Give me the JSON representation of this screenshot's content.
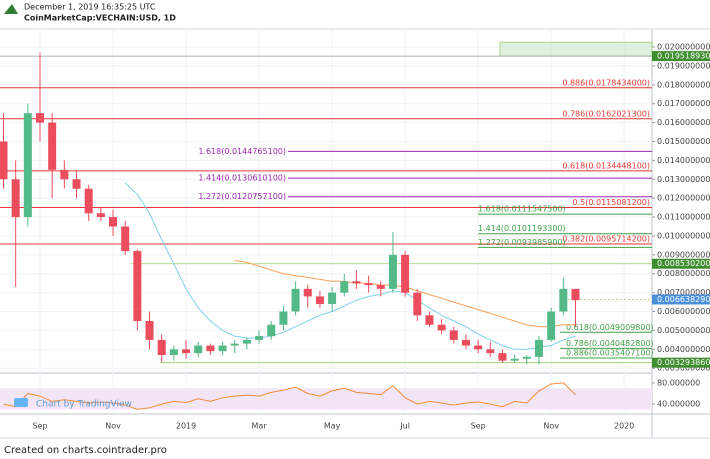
{
  "chart_data": {
    "type": "candlestick",
    "timestamp": "December 1, 2019 16:35:25 UTC",
    "title": "CoinMarketCap:VECHAIN:USD, 1D",
    "watermark": "Chart by TradingView",
    "footer": "Created on charts.cointrader.pro",
    "up_color": "#53b987",
    "down_color": "#eb4d5c",
    "grid": true,
    "categories": [
      null,
      null,
      null,
      "Sep",
      null,
      null,
      null,
      null,
      null,
      "Nov",
      null,
      null,
      null,
      null,
      null,
      "2019",
      null,
      null,
      null,
      null,
      null,
      "Mar",
      null,
      null,
      null,
      null,
      null,
      "May",
      null,
      null,
      null,
      null,
      null,
      "Jul",
      null,
      null,
      null,
      null,
      null,
      "Sep",
      null,
      null,
      null,
      null,
      null,
      "Nov",
      null,
      null,
      null,
      null,
      null,
      "2020"
    ],
    "open": [
      0.015,
      0.013,
      0.011,
      0.0165,
      0.016,
      0.0135,
      0.013,
      0.0125,
      0.0112,
      0.011,
      0.0105,
      0.0092,
      0.0055,
      0.0045,
      0.0037,
      0.004,
      0.0038,
      0.0042,
      0.0039,
      0.0042,
      0.0043,
      0.0045,
      0.0047,
      0.0053,
      0.006,
      0.0072,
      0.0068,
      0.0064,
      0.007,
      0.0076,
      0.0075,
      0.0074,
      0.0072,
      0.009,
      0.007,
      0.0058,
      0.0053,
      0.005,
      0.0045,
      0.0042,
      0.004,
      0.0038,
      0.0034,
      0.0035,
      0.0036,
      0.0045,
      0.006,
      0.0072,
      null,
      null,
      null,
      null
    ],
    "high": [
      0.0165,
      0.014,
      0.017,
      0.0197,
      0.0165,
      0.014,
      0.0135,
      0.0127,
      0.0115,
      0.0114,
      0.0108,
      0.0093,
      0.006,
      0.0048,
      0.0042,
      0.0045,
      0.0044,
      0.0043,
      0.0044,
      0.0045,
      0.0046,
      0.005,
      0.0055,
      0.0063,
      0.0076,
      0.0074,
      0.0071,
      0.0073,
      0.008,
      0.0082,
      0.0079,
      0.0076,
      0.0102,
      0.0092,
      0.0072,
      0.006,
      0.0056,
      0.0052,
      0.0048,
      0.0045,
      0.0044,
      0.004,
      0.0037,
      0.0037,
      0.0047,
      0.0062,
      0.0078,
      0.0072,
      null,
      null,
      null,
      null
    ],
    "low": [
      0.0125,
      0.0073,
      0.0105,
      0.015,
      0.012,
      0.0125,
      0.012,
      0.0108,
      0.0108,
      0.01,
      0.009,
      0.005,
      0.004,
      0.0033,
      0.0034,
      0.0035,
      0.0036,
      0.0037,
      0.0037,
      0.0038,
      0.004,
      0.0043,
      0.0045,
      0.005,
      0.0058,
      0.0062,
      0.0062,
      0.006,
      0.0068,
      0.0072,
      0.007,
      0.0068,
      0.007,
      0.0068,
      0.0055,
      0.0052,
      0.0048,
      0.0043,
      0.004,
      0.0038,
      0.0036,
      0.0033,
      0.0033,
      0.0032,
      0.0032,
      0.0044,
      0.0058,
      0.0052,
      null,
      null,
      null,
      null
    ],
    "close": [
      0.013,
      0.011,
      0.0165,
      0.016,
      0.0135,
      0.013,
      0.0125,
      0.0112,
      0.011,
      0.0105,
      0.0092,
      0.0055,
      0.0045,
      0.0037,
      0.004,
      0.0038,
      0.0042,
      0.0039,
      0.0042,
      0.0043,
      0.0045,
      0.0047,
      0.0053,
      0.006,
      0.0072,
      0.0068,
      0.0064,
      0.007,
      0.0076,
      0.0075,
      0.0074,
      0.0072,
      0.009,
      0.007,
      0.0058,
      0.0053,
      0.005,
      0.0045,
      0.0042,
      0.004,
      0.0038,
      0.0034,
      0.0035,
      0.0036,
      0.0045,
      0.006,
      0.0072,
      0.0066,
      null,
      null,
      null,
      null
    ],
    "moving_averages": [
      {
        "color": "#7fd3e6",
        "values": [
          null,
          null,
          null,
          null,
          null,
          null,
          null,
          null,
          null,
          null,
          0.0128,
          0.0122,
          0.0112,
          0.0098,
          0.0085,
          0.0072,
          0.0062,
          0.0055,
          0.005,
          0.0047,
          0.0046,
          0.0046,
          0.0047,
          0.0049,
          0.0052,
          0.0055,
          0.0058,
          0.006,
          0.0063,
          0.0066,
          0.0068,
          0.0069,
          0.0071,
          0.007,
          0.0066,
          0.0062,
          0.0058,
          0.0055,
          0.0052,
          0.0048,
          0.0045,
          0.0042,
          0.004,
          0.004,
          0.0041,
          0.0042,
          0.0045,
          0.0047,
          null,
          null,
          null,
          null
        ]
      },
      {
        "color": "#f5a05a",
        "values": [
          null,
          null,
          null,
          null,
          null,
          null,
          null,
          null,
          null,
          null,
          null,
          null,
          null,
          null,
          null,
          null,
          null,
          null,
          null,
          0.0087,
          0.0086,
          0.0084,
          0.0082,
          0.008,
          0.0079,
          0.0078,
          0.0077,
          0.0076,
          0.0076,
          0.0075,
          0.0075,
          0.0074,
          0.0074,
          0.0073,
          0.0071,
          0.0069,
          0.0067,
          0.0065,
          0.0063,
          0.0061,
          0.0059,
          0.0057,
          0.0055,
          0.0053,
          0.0052,
          0.0052,
          0.0053,
          0.0053,
          null,
          null,
          null,
          null
        ]
      }
    ],
    "ylim": [
      0.0028,
      0.0209
    ],
    "yticks": [
      {
        "value": 0.003,
        "label": "0.0030000000"
      },
      {
        "value": 0.004,
        "label": "0.0040000000"
      },
      {
        "value": 0.005,
        "label": "0.0050000000"
      },
      {
        "value": 0.006,
        "label": "0.0060000000"
      },
      {
        "value": 0.007,
        "label": "0.0070000000"
      },
      {
        "value": 0.008,
        "label": "0.0080000000"
      },
      {
        "value": 0.009,
        "label": "0.0090000000"
      },
      {
        "value": 0.01,
        "label": "0.0100000000"
      },
      {
        "value": 0.011,
        "label": "0.0110000000"
      },
      {
        "value": 0.012,
        "label": "0.0120000000"
      },
      {
        "value": 0.013,
        "label": "0.0130000000"
      },
      {
        "value": 0.014,
        "label": "0.0140000000"
      },
      {
        "value": 0.015,
        "label": "0.0150000000"
      },
      {
        "value": 0.016,
        "label": "0.0160000000"
      },
      {
        "value": 0.017,
        "label": "0.0170000000"
      },
      {
        "value": 0.018,
        "label": "0.0180000000"
      },
      {
        "value": 0.019,
        "label": "0.0190000000"
      },
      {
        "value": 0.02,
        "label": "0.0200000000"
      }
    ],
    "fib_sets": [
      {
        "color": "#e53935",
        "levels": [
          {
            "label": "0.886(0.0178434000)",
            "price": 0.0178434
          },
          {
            "label": "0.786(0.0162021300)",
            "price": 0.01620213
          },
          {
            "label": "0.618(0.0134448100)",
            "price": 0.01344481
          },
          {
            "label": "0.5(0.0115081200)",
            "price": 0.01150812
          },
          {
            "label": "0.382(0.0095714200)",
            "price": 0.00957142
          }
        ]
      },
      {
        "color": "#9c27b0",
        "levels": [
          {
            "label": "1.618(0.0144765100)",
            "price": 0.01447651
          },
          {
            "label": "1.414(0.0130610100)",
            "price": 0.01306101
          },
          {
            "label": "1.272(0.0120757100)",
            "price": 0.01207571
          }
        ]
      },
      {
        "color": "#43a047",
        "levels": [
          {
            "label": "1.618(0.0111547500)",
            "price": 0.01115475
          },
          {
            "label": "1.414(0.0101193300)",
            "price": 0.01011933
          },
          {
            "label": "1.272(0.0093985900)",
            "price": 0.00939859
          }
        ]
      },
      {
        "color": "#43a047",
        "levels": [
          {
            "label": "0.618(0.0049009800)",
            "price": 0.00490098
          },
          {
            "label": "0.786(0.0040482800)",
            "price": 0.00404828
          },
          {
            "label": "0.886(0.0035407100)",
            "price": 0.00354071
          }
        ]
      }
    ],
    "price_tags": [
      {
        "label": "0.0195189300",
        "value": 0.01951893,
        "color": "#3e8e2f"
      },
      {
        "label": "0.0085302000",
        "value": 0.0085302,
        "color": "#3e8e2f"
      },
      {
        "label": "0.0066382900",
        "value": 0.00663829,
        "color": "#4a90d9"
      },
      {
        "label": "0.0032938600",
        "value": 0.00329386,
        "color": "#3e8e2f"
      }
    ],
    "oscillator": {
      "color": "#f08c3a",
      "band": [
        30,
        70
      ],
      "ylim": [
        25,
        95
      ],
      "yticks": [
        {
          "value": 40,
          "label": "40.000000"
        },
        {
          "value": 80,
          "label": "80.000000"
        }
      ],
      "values": [
        40,
        35,
        60,
        55,
        45,
        48,
        45,
        42,
        44,
        42,
        38,
        30,
        33,
        40,
        45,
        43,
        50,
        45,
        52,
        55,
        57,
        55,
        62,
        66,
        72,
        60,
        55,
        65,
        70,
        62,
        60,
        58,
        75,
        52,
        40,
        45,
        42,
        38,
        42,
        44,
        40,
        35,
        45,
        42,
        65,
        78,
        80,
        58,
        null,
        null,
        null,
        null
      ]
    }
  }
}
